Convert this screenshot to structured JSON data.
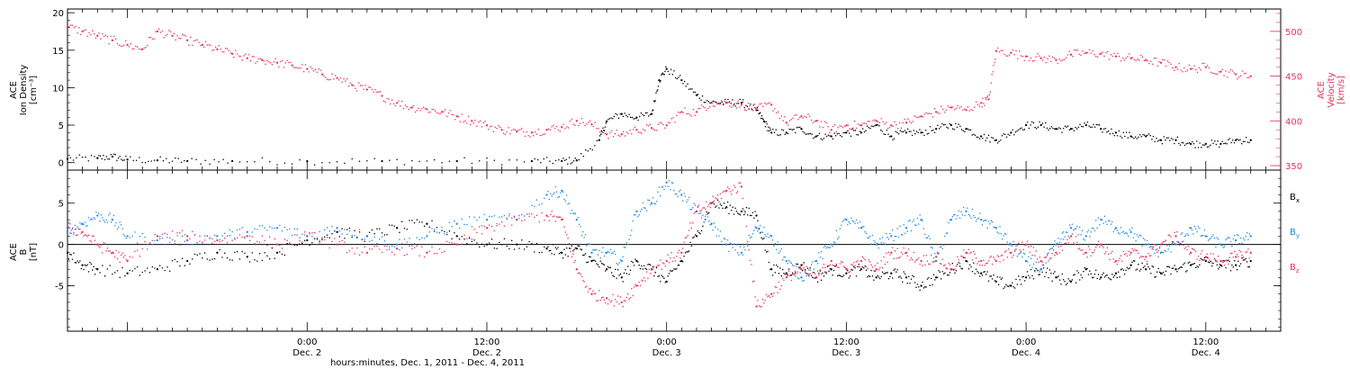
{
  "chart_data": {
    "type": "scatter",
    "x_axis": {
      "range_hours": [
        -16,
        65
      ],
      "ticks": [
        {
          "hour": 0,
          "time": "0:00",
          "day": "Dec. 2"
        },
        {
          "hour": 12,
          "time": "12:00",
          "day": "Dec. 2"
        },
        {
          "hour": 24,
          "time": "0:00",
          "day": "Dec. 3"
        },
        {
          "hour": 36,
          "time": "12:00",
          "day": "Dec. 3"
        },
        {
          "hour": 48,
          "time": "0:00",
          "day": "Dec. 4"
        },
        {
          "hour": 60,
          "time": "12:00",
          "day": "Dec. 4"
        }
      ],
      "xlabel": "hours:minutes, Dec.  1, 2011 - Dec.  4, 2011"
    },
    "panels": [
      {
        "id": "density_velocity",
        "left_axis": {
          "label_lines": [
            "ACE",
            "Ion Density",
            "[cm⁻³]"
          ],
          "ylim": [
            -1,
            20.5
          ],
          "ticks": [
            0,
            5,
            10,
            15,
            20
          ],
          "color": "#000000"
        },
        "right_axis": {
          "label_lines": [
            "ACE",
            "Velocity",
            "[km/s]"
          ],
          "ylim": [
            345,
            525
          ],
          "ticks": [
            350,
            400,
            450,
            500
          ],
          "color": "#e8305a"
        },
        "series": [
          {
            "key": "density",
            "axis": "left",
            "color": "#000000",
            "x": [
              -16,
              -14,
              -13,
              -12,
              -10,
              -8,
              -5,
              0,
              5,
              10,
              15,
              17,
              18,
              19.5,
              20,
              21,
              22,
              23,
              23.5,
              24,
              25,
              26,
              27,
              28,
              29,
              30,
              30.5,
              31,
              32,
              33,
              34,
              35,
              36,
              37,
              38,
              39,
              40,
              41,
              42,
              43,
              44,
              45,
              46,
              47,
              48,
              49,
              50,
              51,
              52,
              53,
              54,
              55,
              56,
              57,
              58,
              59,
              60,
              61,
              62,
              63
            ],
            "y": [
              0.5,
              0.6,
              0.8,
              0.4,
              0.3,
              0.2,
              0.2,
              0.2,
              0.2,
              0.2,
              0.2,
              0.2,
              0.3,
              3,
              5.5,
              6.5,
              6,
              6.5,
              11,
              12.5,
              11,
              9,
              8,
              8,
              8,
              7,
              5.5,
              4,
              4,
              4.5,
              3.5,
              3.5,
              4,
              4,
              5,
              3.5,
              4,
              4,
              4.5,
              5,
              4.5,
              3.5,
              3,
              4,
              5,
              5,
              4.5,
              4.5,
              5,
              4.5,
              4,
              3.5,
              3.5,
              3,
              3,
              2.5,
              2.5,
              2.5,
              3,
              3
            ]
          },
          {
            "key": "velocity",
            "axis": "right",
            "color": "#e8305a",
            "x": [
              -16,
              -15,
              -14,
              -13,
              -12,
              -11,
              -10,
              -9,
              -8,
              -7,
              -6,
              -5,
              -4,
              -3,
              -2,
              -1,
              0,
              1,
              2,
              3,
              4,
              5,
              6,
              7,
              8,
              9,
              10,
              11,
              12,
              13,
              14,
              15,
              16,
              17,
              18,
              19,
              20,
              21,
              22,
              23,
              24,
              25,
              26,
              27,
              28,
              29,
              30,
              31,
              32,
              33,
              34,
              35,
              36,
              37,
              38,
              39,
              40,
              41,
              42,
              43,
              44,
              45,
              45.5,
              46,
              47,
              48,
              49,
              50,
              51,
              52,
              53,
              54,
              55,
              56,
              57,
              58,
              59,
              60,
              61,
              62,
              63
            ],
            "y": [
              505,
              500,
              495,
              490,
              485,
              480,
              500,
              495,
              490,
              485,
              480,
              475,
              470,
              468,
              465,
              462,
              458,
              452,
              448,
              440,
              435,
              428,
              420,
              415,
              413,
              410,
              405,
              400,
              395,
              390,
              388,
              387,
              390,
              393,
              400,
              396,
              385,
              385,
              390,
              392,
              395,
              410,
              410,
              420,
              420,
              418,
              413,
              418,
              398,
              405,
              400,
              390,
              395,
              395,
              400,
              395,
              398,
              405,
              410,
              415,
              412,
              420,
              424,
              478,
              476,
              472,
              470,
              468,
              474,
              476,
              475,
              472,
              470,
              468,
              465,
              460,
              458,
              460,
              455,
              452,
              450
            ]
          }
        ]
      },
      {
        "id": "magnetic_field",
        "left_axis": {
          "label_lines": [
            "ACE",
            "B",
            "[nT]"
          ],
          "ylim": [
            -10.5,
            9
          ],
          "ticks": [
            -5,
            0,
            5
          ],
          "color": "#000000"
        },
        "zero_line": true,
        "series": [
          {
            "key": "Bx",
            "label_main": "B",
            "label_sub": "x",
            "color": "#000000",
            "x": [
              -16,
              -15,
              -14,
              -12,
              -10,
              -8,
              -6,
              -4,
              -2,
              0,
              2,
              4,
              6,
              8,
              10,
              12,
              14,
              16,
              17,
              18,
              19,
              20,
              21,
              22,
              23,
              24,
              25,
              26,
              27,
              28,
              29,
              30,
              31,
              32,
              33,
              34,
              35,
              36,
              37,
              38,
              39,
              40,
              41,
              42,
              43,
              44,
              45,
              46,
              47,
              48,
              49,
              50,
              51,
              52,
              53,
              54,
              55,
              56,
              57,
              58,
              59,
              60,
              61,
              62,
              63
            ],
            "y": [
              -1,
              -2.5,
              -3,
              -3.5,
              -3,
              -2,
              -1,
              -1.5,
              -1,
              0.5,
              1.5,
              1,
              2,
              2.5,
              1,
              0,
              0,
              -0.5,
              -1,
              -0.5,
              -2,
              -3,
              -4,
              -2,
              -3,
              -4.5,
              -2,
              1,
              5,
              4.5,
              4,
              3.5,
              -3,
              -3.5,
              -2.5,
              -4,
              -3,
              -3.5,
              -3,
              -4,
              -3.5,
              -4,
              -5,
              -4,
              -3,
              -2,
              -3.5,
              -4.5,
              -5,
              -4,
              -3,
              -4,
              -4.5,
              -3,
              -4,
              -3.5,
              -2.5,
              -3,
              -3.5,
              -3,
              -2.5,
              -2,
              -2.5,
              -2.5,
              -2
            ]
          },
          {
            "key": "By",
            "label_main": "B",
            "label_sub": "y",
            "color": "#1e88e5",
            "x": [
              -16,
              -15,
              -14,
              -13,
              -12,
              -10,
              -8,
              -6,
              -4,
              -2,
              0,
              2,
              4,
              6,
              8,
              10,
              12,
              14,
              16,
              17,
              18,
              19,
              20,
              21,
              22,
              23,
              24,
              25,
              26,
              27,
              28,
              29,
              30,
              31,
              32,
              33,
              34,
              35,
              36,
              37,
              38,
              39,
              40,
              41,
              42,
              43,
              44,
              45,
              46,
              47,
              48,
              49,
              50,
              51,
              52,
              53,
              54,
              55,
              56,
              57,
              58,
              59,
              60,
              61,
              62,
              63
            ],
            "y": [
              1.5,
              2.5,
              3.5,
              3,
              1,
              0.5,
              0.5,
              1,
              1.5,
              2,
              1,
              2,
              1,
              0,
              1,
              2.5,
              3,
              3,
              6,
              6.5,
              3,
              -1,
              -1,
              -2,
              4,
              5,
              7.5,
              6,
              4,
              2.5,
              0,
              -1,
              2,
              1,
              -2,
              -4,
              -2,
              0,
              3,
              2,
              0,
              1,
              2,
              3,
              -2,
              3,
              4,
              3,
              2,
              0,
              -2,
              -3,
              0,
              2,
              1,
              3,
              2,
              1.5,
              0,
              -1,
              0,
              2,
              1,
              0,
              0.5,
              1
            ]
          },
          {
            "key": "Bz",
            "label_main": "B",
            "label_sub": "z",
            "color": "#e8305a",
            "x": [
              -16,
              -15,
              -14,
              -13,
              -12,
              -10,
              -8,
              -6,
              -4,
              -2,
              0,
              2,
              4,
              6,
              8,
              10,
              12,
              14,
              16,
              17,
              18,
              19,
              20,
              21,
              22,
              23,
              24,
              25,
              26,
              27,
              28,
              29,
              30,
              31,
              32,
              33,
              34,
              35,
              36,
              37,
              38,
              39,
              40,
              41,
              42,
              43,
              44,
              45,
              46,
              47,
              48,
              49,
              50,
              51,
              52,
              53,
              54,
              55,
              56,
              57,
              58,
              59,
              60,
              61,
              62,
              63
            ],
            "y": [
              2,
              1.5,
              0,
              -1,
              -2,
              1,
              1,
              0.5,
              1,
              0,
              1,
              0,
              -1,
              -0.5,
              -1,
              0,
              2,
              3,
              3.5,
              3,
              -3,
              -6,
              -6.5,
              -7,
              -5,
              -3,
              -2,
              -1,
              4,
              5,
              6.5,
              7,
              -7.5,
              -6,
              -4,
              -3,
              -4,
              -2,
              -3,
              -2,
              -3,
              -1,
              -1,
              -2,
              -1.5,
              -3,
              -1,
              -2,
              -2,
              -1,
              0,
              -2,
              -1,
              1,
              -1,
              0,
              -2,
              -1,
              -1.5,
              0,
              1,
              -1,
              -1.5,
              -2,
              -1.5,
              -1
            ]
          }
        ]
      }
    ]
  }
}
